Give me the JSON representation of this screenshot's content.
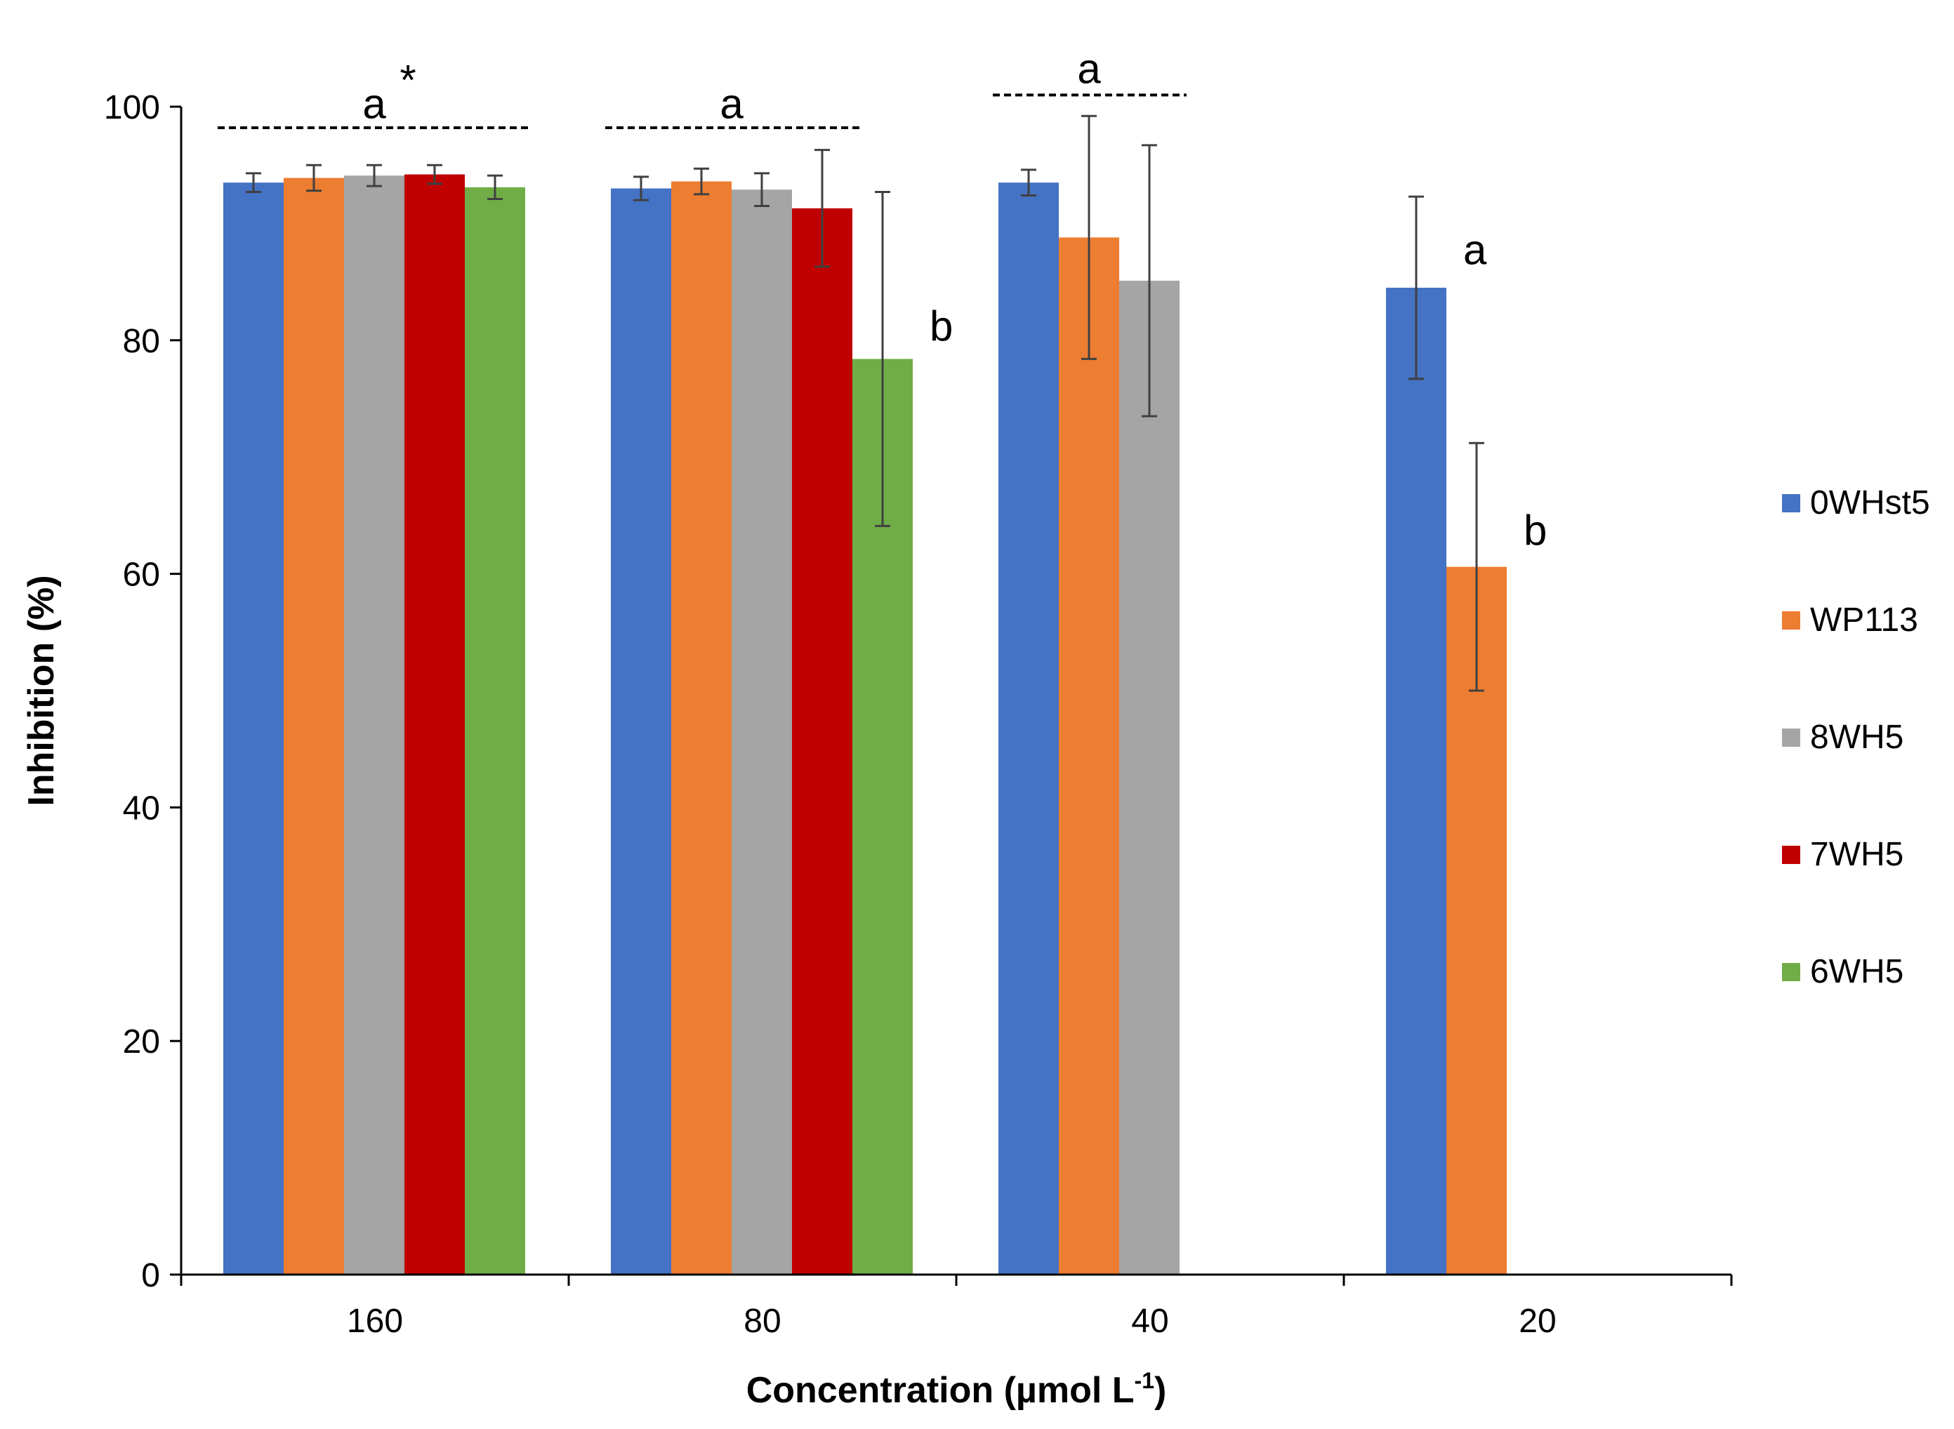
{
  "chart_data": {
    "type": "bar",
    "xlabel": "Concentration (µmol L",
    "xlabel_sup": "-1",
    "xlabel_close": ")",
    "ylabel": "Inhibition (%)",
    "ylim": [
      0,
      100
    ],
    "yticks": [
      0,
      20,
      40,
      60,
      80,
      100
    ],
    "categories": [
      "160",
      "80",
      "40",
      "20"
    ],
    "legend_position": "right",
    "series": [
      {
        "name": "0WHst5",
        "color": "#4472C4",
        "values": [
          93.5,
          93.0,
          93.5,
          84.5
        ],
        "errors": [
          0.8,
          1.0,
          1.1,
          7.8
        ]
      },
      {
        "name": "WP113",
        "color": "#ED7D31",
        "values": [
          93.9,
          93.6,
          88.8,
          60.6
        ],
        "errors": [
          1.1,
          1.1,
          10.4,
          10.6
        ]
      },
      {
        "name": "8WH5",
        "color": "#A5A5A5",
        "values": [
          94.1,
          92.9,
          85.1,
          null
        ],
        "errors": [
          0.9,
          1.4,
          11.6,
          null
        ]
      },
      {
        "name": "7WH5",
        "color": "#C00000",
        "values": [
          94.2,
          91.3,
          null,
          null
        ],
        "errors": [
          0.8,
          5.0,
          null,
          null
        ]
      },
      {
        "name": "6WH5",
        "color": "#70AD47",
        "values": [
          93.1,
          78.4,
          null,
          null
        ],
        "errors": [
          1.0,
          14.3,
          null,
          null
        ]
      }
    ],
    "annotations": [
      {
        "text": "a",
        "type": "group",
        "category": 0,
        "y": 99.0,
        "sup": "*"
      },
      {
        "text": "a",
        "type": "group",
        "category": 1,
        "y": 99.0
      },
      {
        "text": "a",
        "type": "group",
        "category": 2,
        "y": 102.0
      },
      {
        "text": "b",
        "type": "bar",
        "category": 1,
        "series": 4,
        "y": 80.0
      },
      {
        "text": "a",
        "type": "bar",
        "category": 3,
        "series": 0,
        "y": 86.5
      },
      {
        "text": "b",
        "type": "bar",
        "category": 3,
        "series": 1,
        "y": 62.5
      }
    ],
    "dashed_groups": [
      {
        "category": 0,
        "series_count": 5
      },
      {
        "category": 1,
        "series_count": 4
      },
      {
        "category": 2,
        "series_count": 3
      }
    ]
  }
}
